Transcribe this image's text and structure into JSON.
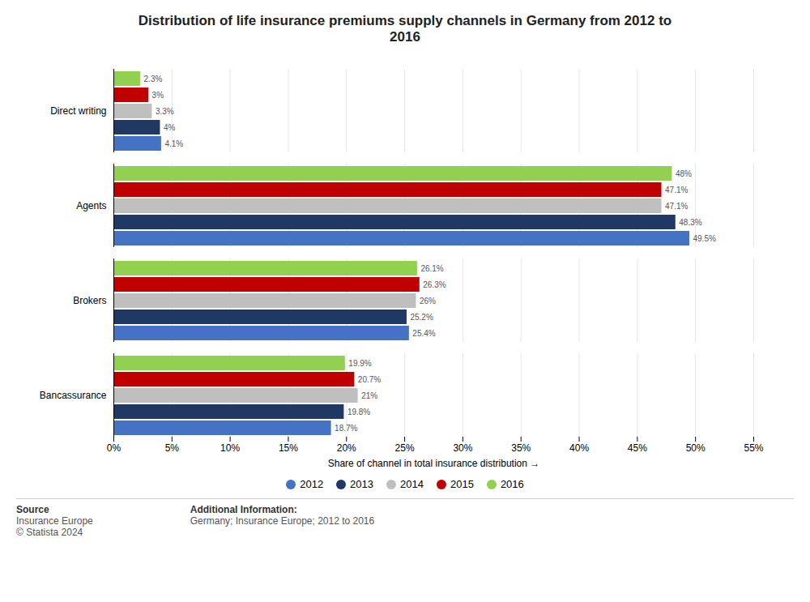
{
  "chart_data": {
    "type": "bar",
    "orientation": "horizontal",
    "title": "Distribution of life insurance premiums supply channels in Germany from 2012 to\n2016",
    "xlabel": "Share of channel in total insurance distribution",
    "categories": [
      "Direct writing",
      "Agents",
      "Brokers",
      "Bancassurance"
    ],
    "series": [
      {
        "name": "2012",
        "color": "#4472C4",
        "values": [
          4.1,
          49.5,
          25.4,
          18.7
        ],
        "value_labels": [
          "4.1%",
          "49.5%",
          "25.4%",
          "18.7%"
        ]
      },
      {
        "name": "2013",
        "color": "#1F3864",
        "values": [
          4.0,
          48.3,
          25.2,
          19.8
        ],
        "value_labels": [
          "4%",
          "48.3%",
          "25.2%",
          "19.8%"
        ]
      },
      {
        "name": "2014",
        "color": "#BFBFBF",
        "values": [
          3.3,
          47.1,
          26.0,
          21.0
        ],
        "value_labels": [
          "3.3%",
          "47.1%",
          "26%",
          "21%"
        ]
      },
      {
        "name": "2015",
        "color": "#C00000",
        "values": [
          3.0,
          47.1,
          26.3,
          20.7
        ],
        "value_labels": [
          "3%",
          "47.1%",
          "26.3%",
          "20.7%"
        ]
      },
      {
        "name": "2016",
        "color": "#92D050",
        "values": [
          2.3,
          48.0,
          26.1,
          19.9
        ],
        "value_labels": [
          "2.3%",
          "48%",
          "26.1%",
          "19.9%"
        ]
      }
    ],
    "xlim": [
      0,
      55
    ],
    "xticks": [
      {
        "value": 0,
        "label": "0%"
      },
      {
        "value": 5,
        "label": "5%"
      },
      {
        "value": 10,
        "label": "10%"
      },
      {
        "value": 15,
        "label": "15%"
      },
      {
        "value": 20,
        "label": "20%"
      },
      {
        "value": 25,
        "label": "25%"
      },
      {
        "value": 30,
        "label": "30%"
      },
      {
        "value": 35,
        "label": "35%"
      },
      {
        "value": 40,
        "label": "40%"
      },
      {
        "value": 45,
        "label": "45%"
      },
      {
        "value": 50,
        "label": "50%"
      },
      {
        "value": 55,
        "label": "55%"
      }
    ],
    "grid": true,
    "data_labels": true,
    "legend": "bottom",
    "annotations": [
      "Source",
      "Insurance Europe",
      "© Statista 2024",
      "Additional Information:",
      "Germany; Insurance Europe; 2012 to 2016"
    ]
  }
}
